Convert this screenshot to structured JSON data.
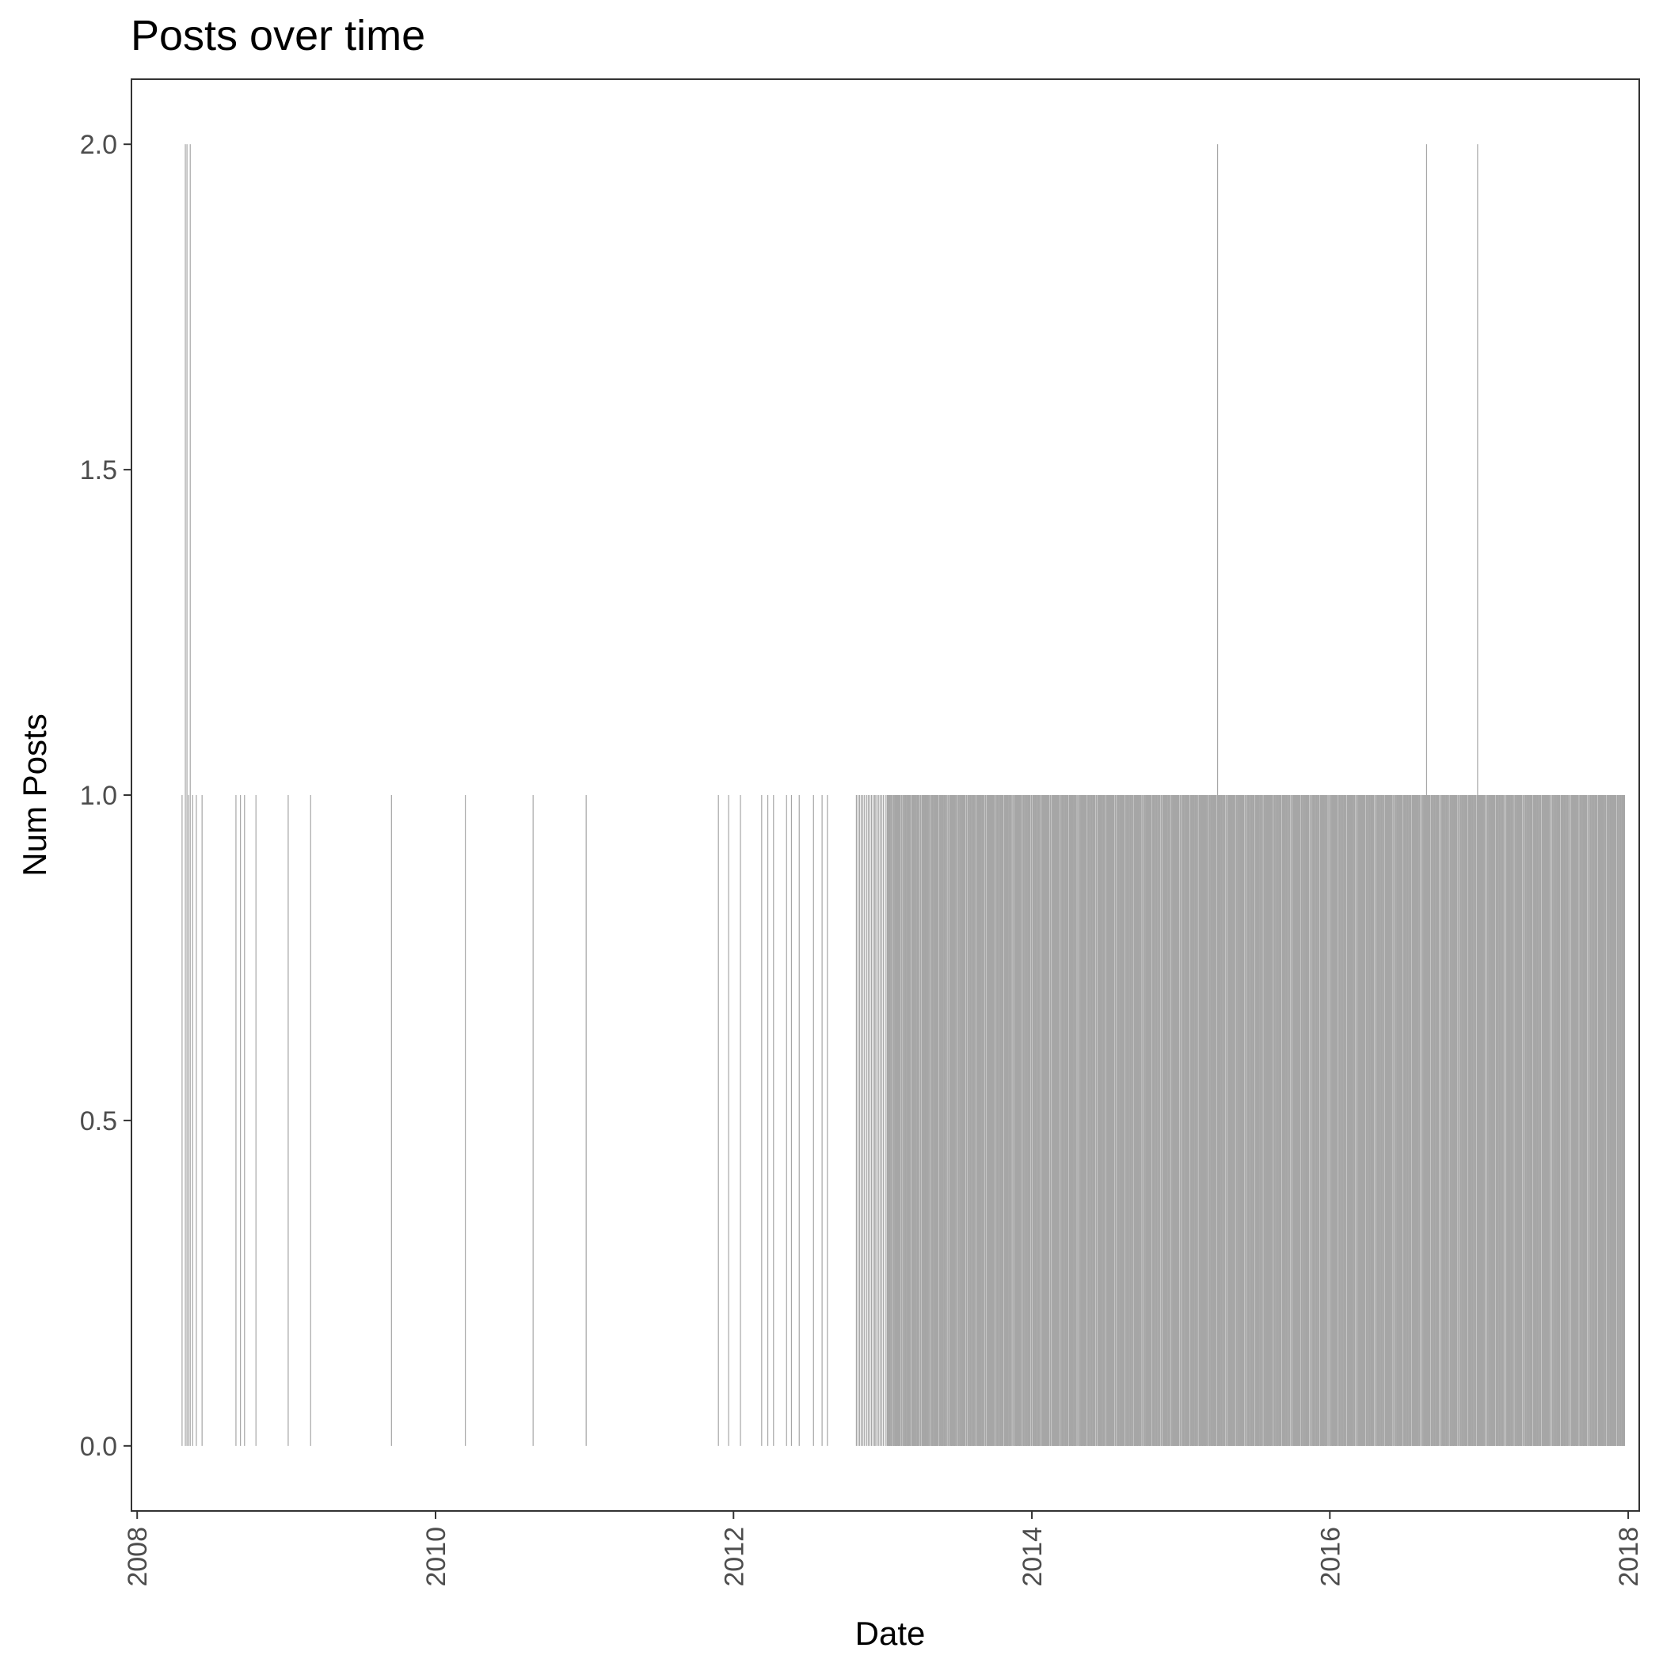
{
  "chart_data": {
    "type": "bar",
    "title": "Posts over time",
    "xlabel": "Date",
    "ylabel": "Num Posts",
    "x_axis_type": "date",
    "xlim": [
      "2007-12-18",
      "2018-01-28"
    ],
    "ylim": [
      -0.1,
      2.1
    ],
    "x_ticks": [
      "2008",
      "2010",
      "2012",
      "2014",
      "2016",
      "2018"
    ],
    "y_ticks": [
      "0.0",
      "0.5",
      "1.0",
      "1.5",
      "2.0"
    ],
    "y_tick_values": [
      0,
      0.5,
      1,
      1.5,
      2
    ],
    "grid": false,
    "legend": "none",
    "bar_color": "#a6a6a6",
    "series": [
      {
        "values_note": "daily post counts",
        "points": [
          {
            "x": "2008-04-20",
            "y": 1
          },
          {
            "x": "2008-04-28",
            "y": 2
          },
          {
            "x": "2008-05-02",
            "y": 2
          },
          {
            "x": "2008-05-06",
            "y": 1
          },
          {
            "x": "2008-05-10",
            "y": 2
          },
          {
            "x": "2008-05-16",
            "y": 1
          },
          {
            "x": "2008-05-25",
            "y": 1
          },
          {
            "x": "2008-06-08",
            "y": 1
          },
          {
            "x": "2008-08-30",
            "y": 1
          },
          {
            "x": "2008-09-10",
            "y": 1
          },
          {
            "x": "2008-09-20",
            "y": 1
          },
          {
            "x": "2008-10-18",
            "y": 1
          },
          {
            "x": "2009-01-05",
            "y": 1
          },
          {
            "x": "2009-03-01",
            "y": 1
          },
          {
            "x": "2009-09-15",
            "y": 1
          },
          {
            "x": "2010-03-15",
            "y": 1
          },
          {
            "x": "2010-08-28",
            "y": 1
          },
          {
            "x": "2011-01-05",
            "y": 1
          },
          {
            "x": "2011-11-25",
            "y": 1
          },
          {
            "x": "2011-12-20",
            "y": 1
          },
          {
            "x": "2012-01-18",
            "y": 1
          },
          {
            "x": "2012-03-10",
            "y": 1
          },
          {
            "x": "2012-03-25",
            "y": 1
          },
          {
            "x": "2012-04-08",
            "y": 1
          },
          {
            "x": "2012-05-10",
            "y": 1
          },
          {
            "x": "2012-05-22",
            "y": 1
          },
          {
            "x": "2012-06-10",
            "y": 1
          },
          {
            "x": "2012-07-15",
            "y": 1
          },
          {
            "x": "2012-08-05",
            "y": 1
          },
          {
            "x": "2012-08-18",
            "y": 1
          },
          {
            "x": "2015-04-01",
            "y": 2
          },
          {
            "x": "2016-08-25",
            "y": 2
          },
          {
            "x": "2016-12-28",
            "y": 2
          }
        ],
        "dense_ranges": [
          {
            "from": "2012-10-28",
            "to": "2017-12-25",
            "y": 1
          }
        ]
      }
    ]
  }
}
